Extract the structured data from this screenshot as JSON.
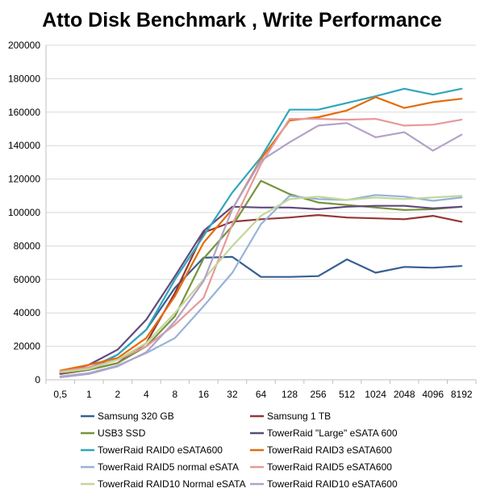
{
  "chart_data": {
    "type": "line",
    "title": "Atto Disk Benchmark , Write Performance",
    "xlabel": "",
    "ylabel": "",
    "categories": [
      "0,5",
      "1",
      "2",
      "4",
      "8",
      "16",
      "32",
      "64",
      "128",
      "256",
      "512",
      "1024",
      "2048",
      "4096",
      "8192"
    ],
    "ylim": [
      0,
      200000
    ],
    "yticks": [
      0,
      20000,
      40000,
      60000,
      80000,
      100000,
      120000,
      140000,
      160000,
      180000,
      200000
    ],
    "grid": true,
    "legend": "bottom",
    "series": [
      {
        "name": "Samsung 320 GB",
        "color": "#376092",
        "values": [
          4000,
          6000,
          15000,
          30000,
          55000,
          73000,
          73500,
          61500,
          61500,
          62000,
          72000,
          64000,
          67500,
          67000,
          68000
        ]
      },
      {
        "name": "Samsung 1 TB",
        "color": "#953735",
        "values": [
          3500,
          6000,
          10000,
          22000,
          52000,
          88000,
          94500,
          96000,
          97000,
          98500,
          97000,
          96500,
          96000,
          98000,
          94500
        ]
      },
      {
        "name": "USB3 SSD",
        "color": "#77933c",
        "values": [
          4000,
          6000,
          10000,
          20000,
          38000,
          72500,
          92000,
          119000,
          111000,
          106000,
          104500,
          103000,
          101500,
          102000,
          103500
        ]
      },
      {
        "name": "TowerRaid \"Large\" eSATA 600",
        "color": "#604a7b",
        "values": [
          4000,
          9000,
          18000,
          36000,
          62000,
          89000,
          103500,
          103000,
          103000,
          102000,
          103500,
          104000,
          104000,
          102500,
          103500
        ]
      },
      {
        "name": "TowerRaid RAID0 eSATA600",
        "color": "#31a6bd",
        "values": [
          5000,
          7000,
          15000,
          30000,
          60000,
          86000,
          112000,
          133000,
          161500,
          161500,
          165500,
          169500,
          174000,
          170500,
          174000
        ]
      },
      {
        "name": "TowerRaid RAID3 eSATA600",
        "color": "#e46c0a",
        "values": [
          5500,
          9000,
          13000,
          25000,
          50000,
          82000,
          102000,
          132000,
          155000,
          157000,
          161000,
          169000,
          162500,
          166000,
          168000
        ]
      },
      {
        "name": "TowerRaid RAID5 normal eSATA",
        "color": "#95b3d7",
        "values": [
          2000,
          4000,
          8500,
          16000,
          25000,
          44000,
          64000,
          93000,
          110000,
          108000,
          107500,
          110500,
          109500,
          107000,
          109000
        ]
      },
      {
        "name": "TowerRaid RAID5 eSATA600",
        "color": "#e6999a",
        "values": [
          5000,
          7500,
          12000,
          20000,
          33000,
          49000,
          93000,
          129000,
          156000,
          156000,
          155500,
          156000,
          152000,
          152500,
          155500
        ]
      },
      {
        "name": "TowerRaid RAID10 Normal eSATA",
        "color": "#c3d69b",
        "values": [
          4500,
          6500,
          12000,
          22000,
          40000,
          60000,
          80000,
          98000,
          108000,
          109500,
          107500,
          109000,
          108000,
          109000,
          110000
        ]
      },
      {
        "name": "TowerRaid RAID10 eSATA600",
        "color": "#b3a2c7",
        "values": [
          1500,
          3500,
          8000,
          16500,
          35000,
          59000,
          102000,
          131000,
          142000,
          152000,
          153500,
          145000,
          148000,
          137000,
          146500
        ]
      }
    ]
  }
}
